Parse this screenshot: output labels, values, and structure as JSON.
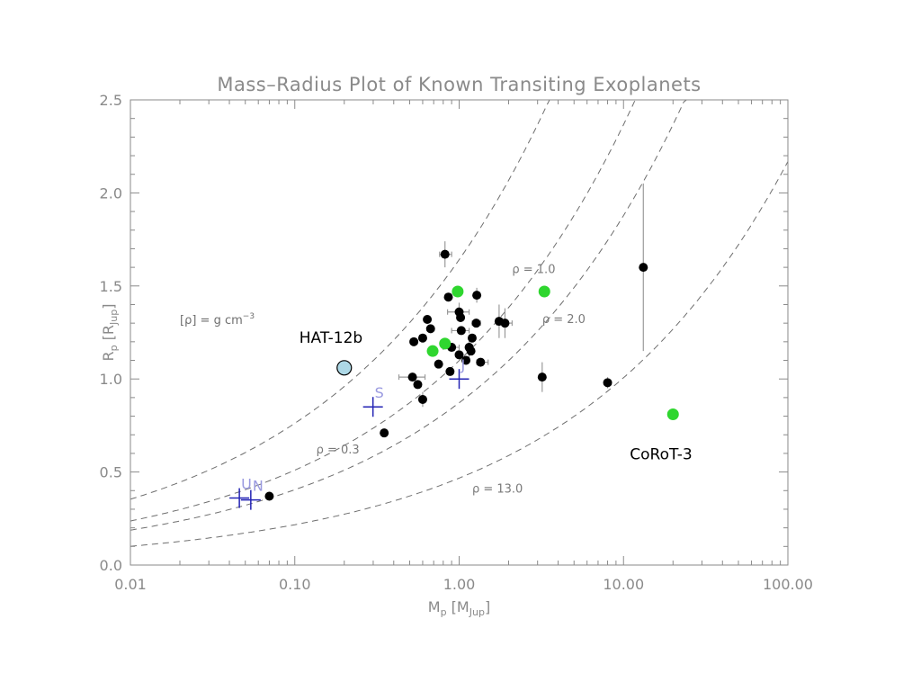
{
  "chart_data": {
    "type": "scatter",
    "title": "Mass–Radius Plot of Known Transiting Exoplanets",
    "xlabel": {
      "main": "M",
      "sub": "p",
      "open": " [M",
      "unit_sub": "Jup",
      "close": "]"
    },
    "ylabel": {
      "main": "R",
      "sub": "p",
      "open": " [R",
      "unit_sub": "Jup",
      "close": "]"
    },
    "x_scale": "log",
    "xlim": [
      0.01,
      100
    ],
    "ylim": [
      0.0,
      2.5
    ],
    "x_ticks": [
      {
        "value": 0.01,
        "label": "0.01"
      },
      {
        "value": 0.1,
        "label": "0.10"
      },
      {
        "value": 1,
        "label": "1.00"
      },
      {
        "value": 10,
        "label": "10.00"
      },
      {
        "value": 100,
        "label": "100.00"
      }
    ],
    "y_ticks": [
      {
        "value": 0.0,
        "label": "0.0"
      },
      {
        "value": 0.5,
        "label": "0.5"
      },
      {
        "value": 1.0,
        "label": "1.0"
      },
      {
        "value": 1.5,
        "label": "1.5"
      },
      {
        "value": 2.0,
        "label": "2.0"
      },
      {
        "value": 2.5,
        "label": "2.5"
      }
    ],
    "density_note": {
      "open": "[",
      "rho": "ρ",
      "rest": "] = g cm",
      "exp": "−3"
    },
    "density_curves": [
      {
        "rho": 0.3,
        "label": "ρ = 0.3",
        "label_at": [
          0.135,
          0.6
        ]
      },
      {
        "rho": 1.0,
        "label": "ρ = 1.0",
        "label_at": [
          2.1,
          1.57
        ]
      },
      {
        "rho": 2.0,
        "label": "ρ = 2.0",
        "label_at": [
          3.2,
          1.3
        ]
      },
      {
        "rho": 13.0,
        "label": "ρ = 13.0",
        "label_at": [
          1.2,
          0.39
        ]
      }
    ],
    "series": [
      {
        "color": "#000000",
        "points": [
          {
            "x": 0.07,
            "y": 0.37
          },
          {
            "x": 0.35,
            "y": 0.71
          },
          {
            "x": 0.52,
            "y": 1.01,
            "xerr": [
              0.43,
              0.62
            ]
          },
          {
            "x": 0.56,
            "y": 0.97
          },
          {
            "x": 0.6,
            "y": 0.89,
            "yerr": 0.04
          },
          {
            "x": 0.53,
            "y": 1.2
          },
          {
            "x": 0.6,
            "y": 1.22
          },
          {
            "x": 0.64,
            "y": 1.32
          },
          {
            "x": 0.67,
            "y": 1.27
          },
          {
            "x": 0.75,
            "y": 1.08
          },
          {
            "x": 0.82,
            "y": 1.67,
            "yerr": 0.07,
            "xerr": [
              0.76,
              0.9
            ]
          },
          {
            "x": 0.86,
            "y": 1.44
          },
          {
            "x": 0.88,
            "y": 1.04
          },
          {
            "x": 0.9,
            "y": 1.17,
            "xerr": [
              0.8,
              1.0
            ]
          },
          {
            "x": 1.0,
            "y": 1.36,
            "yerr": 0.05,
            "xerr": [
              0.85,
              1.15
            ]
          },
          {
            "x": 1.02,
            "y": 1.33
          },
          {
            "x": 1.03,
            "y": 1.26,
            "xerr": [
              0.9,
              1.15
            ]
          },
          {
            "x": 1.0,
            "y": 1.13
          },
          {
            "x": 1.1,
            "y": 1.1
          },
          {
            "x": 1.15,
            "y": 1.17,
            "yerr": 0.06
          },
          {
            "x": 1.18,
            "y": 1.15
          },
          {
            "x": 1.2,
            "y": 1.22
          },
          {
            "x": 1.27,
            "y": 1.3,
            "xerr": [
              1.2,
              1.35
            ]
          },
          {
            "x": 1.28,
            "y": 1.45,
            "yerr": 0.04
          },
          {
            "x": 1.35,
            "y": 1.09,
            "xerr": [
              1.28,
              1.5
            ]
          },
          {
            "x": 1.75,
            "y": 1.31,
            "yerr": 0.09
          },
          {
            "x": 1.9,
            "y": 1.3,
            "yerr": 0.08,
            "xerr": [
              1.7,
              2.1
            ]
          },
          {
            "x": 3.2,
            "y": 1.01,
            "yerr": 0.08
          },
          {
            "x": 8.0,
            "y": 0.98,
            "yerr": 0.03
          },
          {
            "x": 13.2,
            "y": 1.6,
            "yerr": 0.45
          }
        ]
      },
      {
        "color": "#2fd62f",
        "points": [
          {
            "x": 0.69,
            "y": 1.15
          },
          {
            "x": 0.82,
            "y": 1.19
          },
          {
            "x": 0.98,
            "y": 1.47
          },
          {
            "x": 3.3,
            "y": 1.47
          },
          {
            "x": 20.0,
            "y": 0.81
          }
        ]
      },
      {
        "color": "#add8e6",
        "points": [
          {
            "x": 0.2,
            "y": 1.06
          }
        ]
      }
    ],
    "solar_system": [
      {
        "label": "S",
        "x": 0.299,
        "y": 0.85
      },
      {
        "label": "J",
        "x": 1.0,
        "y": 1.0
      },
      {
        "label": "U",
        "x": 0.046,
        "y": 0.36
      },
      {
        "label": "N",
        "x": 0.054,
        "y": 0.35
      }
    ],
    "annotations": [
      {
        "text": "HAT-12b",
        "x": 0.2,
        "y": 1.06
      },
      {
        "text": "CoRoT-3",
        "x": 20.0,
        "y": 0.81
      }
    ],
    "grid": false,
    "legend": "none"
  },
  "colors": {
    "axis": "#8a8a8a",
    "curve": "#6e6e6e",
    "solar_system": "#2323b4",
    "solar_label": "#9a9ae0",
    "highlight_fill": "#add8e6"
  }
}
